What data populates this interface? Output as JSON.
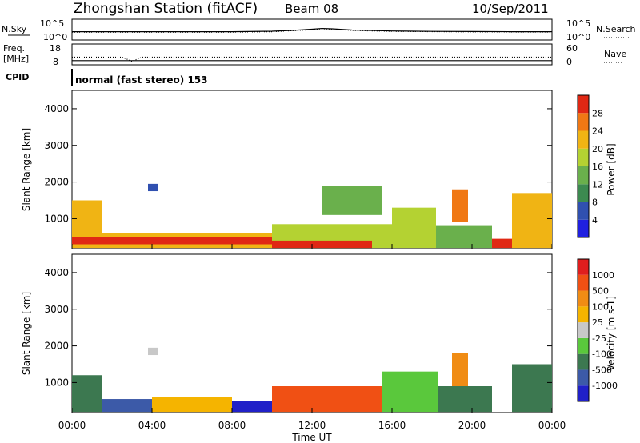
{
  "header": {
    "station": "Zhongshan Station (fitACF)",
    "beam": "Beam 08",
    "date": "10/Sep/2011"
  },
  "chart_data": [
    {
      "type": "line",
      "panel": "noise",
      "left_label": "N.Sky",
      "right_label": "N.Search",
      "left_ticks": [
        "10^5",
        "10^0"
      ],
      "right_ticks": [
        "10^5",
        "10^0"
      ],
      "series": [
        {
          "name": "N.Sky",
          "style": "solid",
          "x": [
            0,
            2,
            4,
            6,
            8,
            10,
            11,
            12,
            12.5,
            13,
            14,
            16,
            18,
            20,
            22,
            24
          ],
          "values": [
            100,
            100,
            100,
            100,
            100,
            130,
            200,
            400,
            600,
            500,
            250,
            150,
            120,
            110,
            100,
            100
          ]
        },
        {
          "name": "N.Search",
          "style": "dotted",
          "x": [
            0,
            4,
            8,
            10,
            12,
            12.5,
            13,
            14,
            16,
            20,
            24
          ],
          "values": [
            80,
            80,
            80,
            100,
            300,
            500,
            400,
            200,
            120,
            90,
            80
          ]
        }
      ]
    },
    {
      "type": "line",
      "panel": "frequency",
      "left_label_lines": [
        "Freq.",
        "[MHz]"
      ],
      "right_label": "Nave",
      "left_ticks": [
        "18",
        "8"
      ],
      "right_ticks": [
        "60",
        "0"
      ],
      "series": [
        {
          "name": "Freq.",
          "style": "solid",
          "x": [
            0,
            24
          ],
          "values": [
            10,
            10
          ]
        },
        {
          "name": "Nave",
          "style": "dotted",
          "x": [
            0,
            2.5,
            3,
            3.5,
            24
          ],
          "values": [
            22,
            22,
            10,
            22,
            22
          ]
        }
      ]
    },
    {
      "type": "text",
      "panel": "cpid",
      "label": "CPID",
      "value": "normal (fast stereo) 153"
    },
    {
      "type": "heatmap",
      "panel": "power",
      "ylabel": "Slant Range [km]",
      "yticks": [
        "1000",
        "2000",
        "3000",
        "4000"
      ],
      "ylim": [
        180,
        4500
      ],
      "xlim": [
        0,
        24
      ],
      "colorbar": {
        "label": "Power [dB]",
        "ticks": [
          "4",
          "8",
          "12",
          "16",
          "20",
          "24",
          "28"
        ],
        "colors": [
          "#2020e0",
          "#3050b0",
          "#3c8a50",
          "#6ab04c",
          "#b4d232",
          "#f0b414",
          "#f07814",
          "#e02814"
        ]
      },
      "regions": [
        {
          "x0": 0.0,
          "x1": 1.5,
          "r0": 200,
          "r1": 1500,
          "level": 5
        },
        {
          "x0": 1.5,
          "x1": 10.0,
          "r0": 200,
          "r1": 600,
          "level": 5
        },
        {
          "x0": 0.0,
          "x1": 10.0,
          "r0": 300,
          "r1": 500,
          "level": 7
        },
        {
          "x0": 10.0,
          "x1": 16.0,
          "r0": 200,
          "r1": 850,
          "level": 4
        },
        {
          "x0": 10.0,
          "x1": 15.0,
          "r0": 200,
          "r1": 400,
          "level": 7
        },
        {
          "x0": 16.0,
          "x1": 18.2,
          "r0": 200,
          "r1": 1300,
          "level": 4
        },
        {
          "x0": 18.2,
          "x1": 21.0,
          "r0": 200,
          "r1": 800,
          "level": 3
        },
        {
          "x0": 21.0,
          "x1": 22.0,
          "r0": 200,
          "r1": 450,
          "level": 7
        },
        {
          "x0": 22.0,
          "x1": 24.0,
          "r0": 200,
          "r1": 1700,
          "level": 5
        },
        {
          "x0": 3.8,
          "x1": 4.3,
          "r0": 1750,
          "r1": 1950,
          "level": 1
        },
        {
          "x0": 19.0,
          "x1": 19.8,
          "r0": 900,
          "r1": 1800,
          "level": 6
        },
        {
          "x0": 12.5,
          "x1": 15.5,
          "r0": 1100,
          "r1": 1900,
          "level": 3
        }
      ]
    },
    {
      "type": "heatmap",
      "panel": "velocity",
      "ylabel": "Slant Range [km]",
      "yticks": [
        "1000",
        "2000",
        "3000",
        "4000"
      ],
      "ylim": [
        180,
        4500
      ],
      "xlim": [
        0,
        24
      ],
      "colorbar": {
        "label": "Velocity [m s-1]",
        "ticks": [
          "1000",
          "500",
          "100",
          "25",
          "-25",
          "-100",
          "-500",
          "-1000"
        ],
        "colors": [
          "#2020c8",
          "#3c5aa8",
          "#3c7850",
          "#5ac83c",
          "#c8c8c8",
          "#f5b400",
          "#f08c14",
          "#f05014",
          "#e01e1e"
        ]
      },
      "regions": [
        {
          "x0": 0.0,
          "x1": 1.5,
          "r0": 200,
          "r1": 1200,
          "level": 2
        },
        {
          "x0": 1.5,
          "x1": 4.0,
          "r0": 200,
          "r1": 550,
          "level": 1
        },
        {
          "x0": 4.0,
          "x1": 8.0,
          "r0": 200,
          "r1": 600,
          "level": 5
        },
        {
          "x0": 8.0,
          "x1": 10.0,
          "r0": 200,
          "r1": 500,
          "level": 0
        },
        {
          "x0": 10.0,
          "x1": 15.5,
          "r0": 200,
          "r1": 900,
          "level": 7
        },
        {
          "x0": 15.5,
          "x1": 18.3,
          "r0": 200,
          "r1": 1300,
          "level": 3
        },
        {
          "x0": 18.3,
          "x1": 21.0,
          "r0": 200,
          "r1": 900,
          "level": 2
        },
        {
          "x0": 22.0,
          "x1": 24.0,
          "r0": 200,
          "r1": 1500,
          "level": 2
        },
        {
          "x0": 3.8,
          "x1": 4.3,
          "r0": 1750,
          "r1": 1950,
          "level": 4
        },
        {
          "x0": 19.0,
          "x1": 19.8,
          "r0": 900,
          "r1": 1800,
          "level": 6
        }
      ]
    }
  ],
  "x_axis": {
    "label": "Time UT",
    "ticks": [
      "00:00",
      "04:00",
      "08:00",
      "12:00",
      "16:00",
      "20:00",
      "00:00"
    ]
  }
}
